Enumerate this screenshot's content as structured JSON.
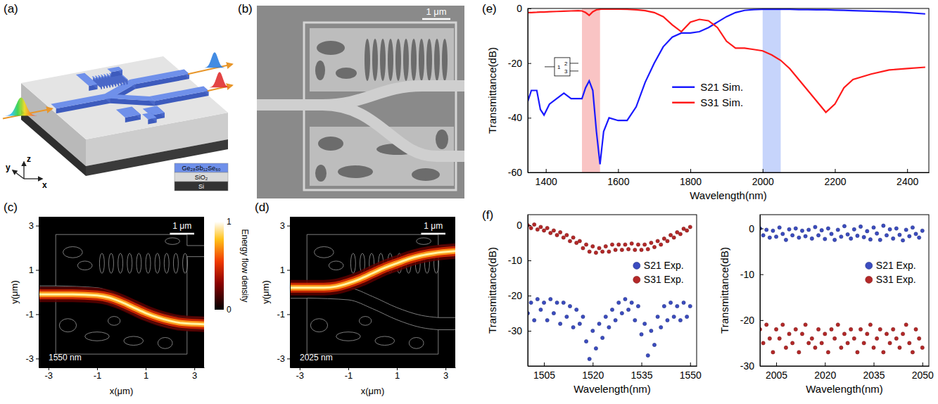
{
  "figure": {
    "a": {
      "panel": "(a)",
      "layers": [
        "Ge₂₈Sb₁₂Se₆₀",
        "SiO₂",
        "Si"
      ],
      "axes": [
        "x",
        "y",
        "z"
      ]
    },
    "b": {
      "panel": "(b)",
      "scale_bar": "1 μm"
    }
  },
  "chart_data": [
    {
      "type": "field_map",
      "panel": "(c)",
      "x_label": "x(μm)",
      "y_label": "y(μm)",
      "xlim": [
        -3.4,
        3.4
      ],
      "ylim": [
        -3.4,
        3.4
      ],
      "xticks": [
        -3,
        -1,
        1,
        3
      ],
      "yticks": [
        -3,
        -1,
        1,
        3
      ],
      "scale_bar": "1 μm",
      "wavelength_label": "1550 nm",
      "beam": {
        "x": [
          -3.4,
          -2,
          -1,
          -0.5,
          0,
          0.5,
          1,
          1.5,
          2,
          2.5,
          3.4
        ],
        "y": [
          -0.1,
          -0.1,
          -0.15,
          -0.25,
          -0.45,
          -0.7,
          -0.95,
          -1.15,
          -1.3,
          -1.4,
          -1.45
        ]
      },
      "colorbar": {
        "label": "Energy flow density",
        "range": [
          0,
          1
        ],
        "ticks": [
          0,
          1
        ]
      }
    },
    {
      "type": "field_map",
      "panel": "(d)",
      "x_label": "x(μm)",
      "y_label": "y(μm)",
      "xlim": [
        -3.4,
        3.4
      ],
      "ylim": [
        -3.4,
        3.4
      ],
      "xticks": [
        -3,
        -1,
        1,
        3
      ],
      "yticks": [
        -3,
        -1,
        1,
        3
      ],
      "scale_bar": "1 μm",
      "wavelength_label": "2025 nm",
      "beam": {
        "x": [
          -3.4,
          -2,
          -1.5,
          -1,
          -0.5,
          0,
          0.5,
          1,
          1.5,
          2,
          2.5,
          3.4
        ],
        "y": [
          0.2,
          0.2,
          0.25,
          0.4,
          0.6,
          0.85,
          1.1,
          1.3,
          1.5,
          1.65,
          1.75,
          1.85
        ]
      }
    },
    {
      "type": "line",
      "panel": "(e)",
      "x_label": "Wavelength(nm)",
      "y_label": "Transmittance(dB)",
      "xlim": [
        1350,
        2460
      ],
      "ylim": [
        -60,
        0
      ],
      "xticks": [
        1400,
        1600,
        1800,
        2000,
        2200,
        2400
      ],
      "yticks": [
        0,
        -20,
        -40,
        -60
      ],
      "x": [
        1350,
        1360,
        1375,
        1385,
        1395,
        1410,
        1430,
        1450,
        1470,
        1490,
        1500,
        1510,
        1520,
        1530,
        1540,
        1550,
        1560,
        1575,
        1600,
        1625,
        1650,
        1675,
        1700,
        1725,
        1750,
        1775,
        1800,
        1825,
        1850,
        1875,
        1900,
        1925,
        1950,
        1975,
        2000,
        2025,
        2050,
        2075,
        2100,
        2125,
        2150,
        2175,
        2200,
        2225,
        2250,
        2300,
        2350,
        2400,
        2450
      ],
      "series": [
        {
          "name": "S21 Sim.",
          "color": "#1a1aff",
          "values": [
            -34,
            -30,
            -30,
            -37,
            -39,
            -35,
            -33,
            -31,
            -33,
            -33,
            -33,
            -29,
            -26.5,
            -30,
            -45,
            -57,
            -45,
            -40,
            -41,
            -41,
            -36,
            -27,
            -20,
            -14,
            -10.5,
            -9,
            -9,
            -8.5,
            -7,
            -5,
            -3,
            -1.5,
            -0.7,
            -0.4,
            -0.3,
            -0.3,
            -0.3,
            -0.3,
            -0.4,
            -0.4,
            -0.5,
            -0.5,
            -0.6,
            -0.7,
            -0.8,
            -1,
            -1.2,
            -1.5,
            -2
          ]
        },
        {
          "name": "S31 Sim.",
          "color": "#ff1a1a",
          "values": [
            -1.5,
            -1.5,
            -1.4,
            -1.3,
            -1.3,
            -1.2,
            -1.1,
            -1,
            -0.9,
            -0.8,
            -0.9,
            -1.5,
            -2.5,
            -1.2,
            -0.5,
            -0.3,
            -0.2,
            -0.2,
            -0.2,
            -0.3,
            -0.5,
            -0.8,
            -1.5,
            -3,
            -6,
            -8.5,
            -5,
            -4,
            -4.5,
            -7,
            -12,
            -14.5,
            -14.5,
            -15,
            -15.5,
            -17,
            -19,
            -22,
            -26,
            -30,
            -34,
            -38,
            -35,
            -29,
            -26,
            -24,
            -22.5,
            -22,
            -21.5
          ]
        }
      ],
      "bands": [
        {
          "range": [
            1500,
            1550
          ],
          "color": "#f9c4c4"
        },
        {
          "range": [
            2000,
            2050
          ],
          "color": "#c6d4fb"
        }
      ],
      "inset_ports": [
        "1",
        "2",
        "3"
      ],
      "legend": "center"
    },
    {
      "type": "scatter",
      "panel": "(f)",
      "x_label": "Wavelength(nm)",
      "y_label": "Transmittance(dB)",
      "xlim": [
        1500,
        1552
      ],
      "ylim": [
        -40,
        3
      ],
      "xticks": [
        1505,
        1520,
        1535,
        1550
      ],
      "yticks": [
        0,
        -10,
        -20,
        -30
      ],
      "x": [
        1500,
        1501,
        1502,
        1503,
        1504,
        1505,
        1506,
        1507,
        1508,
        1509,
        1510,
        1511,
        1512,
        1513,
        1514,
        1515,
        1516,
        1517,
        1518,
        1519,
        1520,
        1521,
        1522,
        1523,
        1524,
        1525,
        1526,
        1527,
        1528,
        1529,
        1530,
        1531,
        1532,
        1533,
        1534,
        1535,
        1536,
        1537,
        1538,
        1539,
        1540,
        1541,
        1542,
        1543,
        1544,
        1545,
        1546,
        1547,
        1548,
        1549,
        1550
      ],
      "series": [
        {
          "name": "S21 Exp.",
          "color": "#3b4cc0",
          "values": [
            -25,
            -22,
            -27,
            -21,
            -24,
            -22,
            -27,
            -21,
            -25,
            -22,
            -28,
            -22,
            -26,
            -23,
            -29,
            -24,
            -28,
            -26,
            -33,
            -38,
            -30,
            -35,
            -28,
            -32,
            -26,
            -29,
            -24,
            -27,
            -22,
            -25,
            -21,
            -24,
            -22,
            -27,
            -23,
            -31,
            -28,
            -37,
            -30,
            -34,
            -26,
            -29,
            -23,
            -27,
            -22,
            -26,
            -23,
            -27,
            -22,
            -26,
            -23
          ]
        },
        {
          "name": "S31 Exp.",
          "color": "#b42828",
          "values": [
            0,
            -0.8,
            0.2,
            -1.2,
            -0.5,
            -1.5,
            -0.8,
            -2.2,
            -1.5,
            -2.8,
            -2,
            -3.5,
            -2.8,
            -4.5,
            -3.5,
            -5,
            -4.5,
            -6.5,
            -5.5,
            -7.5,
            -6,
            -7.8,
            -6.5,
            -7.5,
            -6,
            -7.5,
            -5.5,
            -7,
            -5.5,
            -7,
            -5.5,
            -6.8,
            -5.2,
            -7,
            -5.5,
            -7,
            -5.5,
            -6.8,
            -5,
            -6.2,
            -4.5,
            -5.5,
            -3.8,
            -4.5,
            -2.8,
            -3.5,
            -2,
            -2.5,
            -1,
            -1.5,
            -0.5
          ]
        }
      ],
      "marker": "circle",
      "legend": "right"
    },
    {
      "type": "scatter",
      "x_label": "Wavelength(nm)",
      "y_label": "Transmittance(dB)",
      "xlim": [
        2000,
        2052
      ],
      "ylim": [
        -30,
        3
      ],
      "xticks": [
        2005,
        2020,
        2035,
        2050
      ],
      "yticks": [
        0,
        -10,
        -20,
        -30
      ],
      "x": [
        2000,
        2001,
        2002,
        2003,
        2004,
        2005,
        2006,
        2007,
        2008,
        2009,
        2010,
        2011,
        2012,
        2013,
        2014,
        2015,
        2016,
        2017,
        2018,
        2019,
        2020,
        2021,
        2022,
        2023,
        2024,
        2025,
        2026,
        2027,
        2028,
        2029,
        2030,
        2031,
        2032,
        2033,
        2034,
        2035,
        2036,
        2037,
        2038,
        2039,
        2040,
        2041,
        2042,
        2043,
        2044,
        2045,
        2046,
        2047,
        2048,
        2049,
        2050
      ],
      "series": [
        {
          "name": "S21 Exp.",
          "color": "#3b4cc0",
          "values": [
            0,
            -1.5,
            -0.3,
            -2,
            -0.5,
            -1.8,
            0.2,
            -1.2,
            -2.5,
            -0.2,
            -1.5,
            0,
            -2,
            -0.5,
            -1.7,
            -0.3,
            -2.2,
            0.3,
            -1.5,
            -0.4,
            -2.3,
            0,
            -1.2,
            -2.5,
            -0.3,
            -1.8,
            0.5,
            -1.3,
            -2.2,
            -0.2,
            -1.6,
            0.4,
            -1.9,
            -0.6,
            -2.4,
            0.2,
            -1.1,
            -2.5,
            0.6,
            -1.5,
            -0.2,
            -2.2,
            0,
            -1.4,
            -2.6,
            -0.3,
            -1.7,
            0.2,
            -1.2,
            -2,
            -0.5
          ]
        },
        {
          "name": "S31 Exp.",
          "color": "#b42828",
          "values": [
            -22,
            -25,
            -21,
            -24,
            -27,
            -22,
            -24,
            -21,
            -26,
            -23,
            -25,
            -22,
            -27,
            -23,
            -21,
            -25,
            -24,
            -26,
            -22,
            -25,
            -23,
            -27,
            -22,
            -24,
            -21,
            -26,
            -23,
            -25,
            -22,
            -24,
            -27,
            -22,
            -25,
            -23,
            -21,
            -26,
            -24,
            -22,
            -27,
            -23,
            -25,
            -22,
            -24,
            -26,
            -23,
            -21,
            -25,
            -27,
            -22,
            -24,
            -26
          ]
        }
      ],
      "marker": "circle",
      "legend": "right"
    }
  ]
}
